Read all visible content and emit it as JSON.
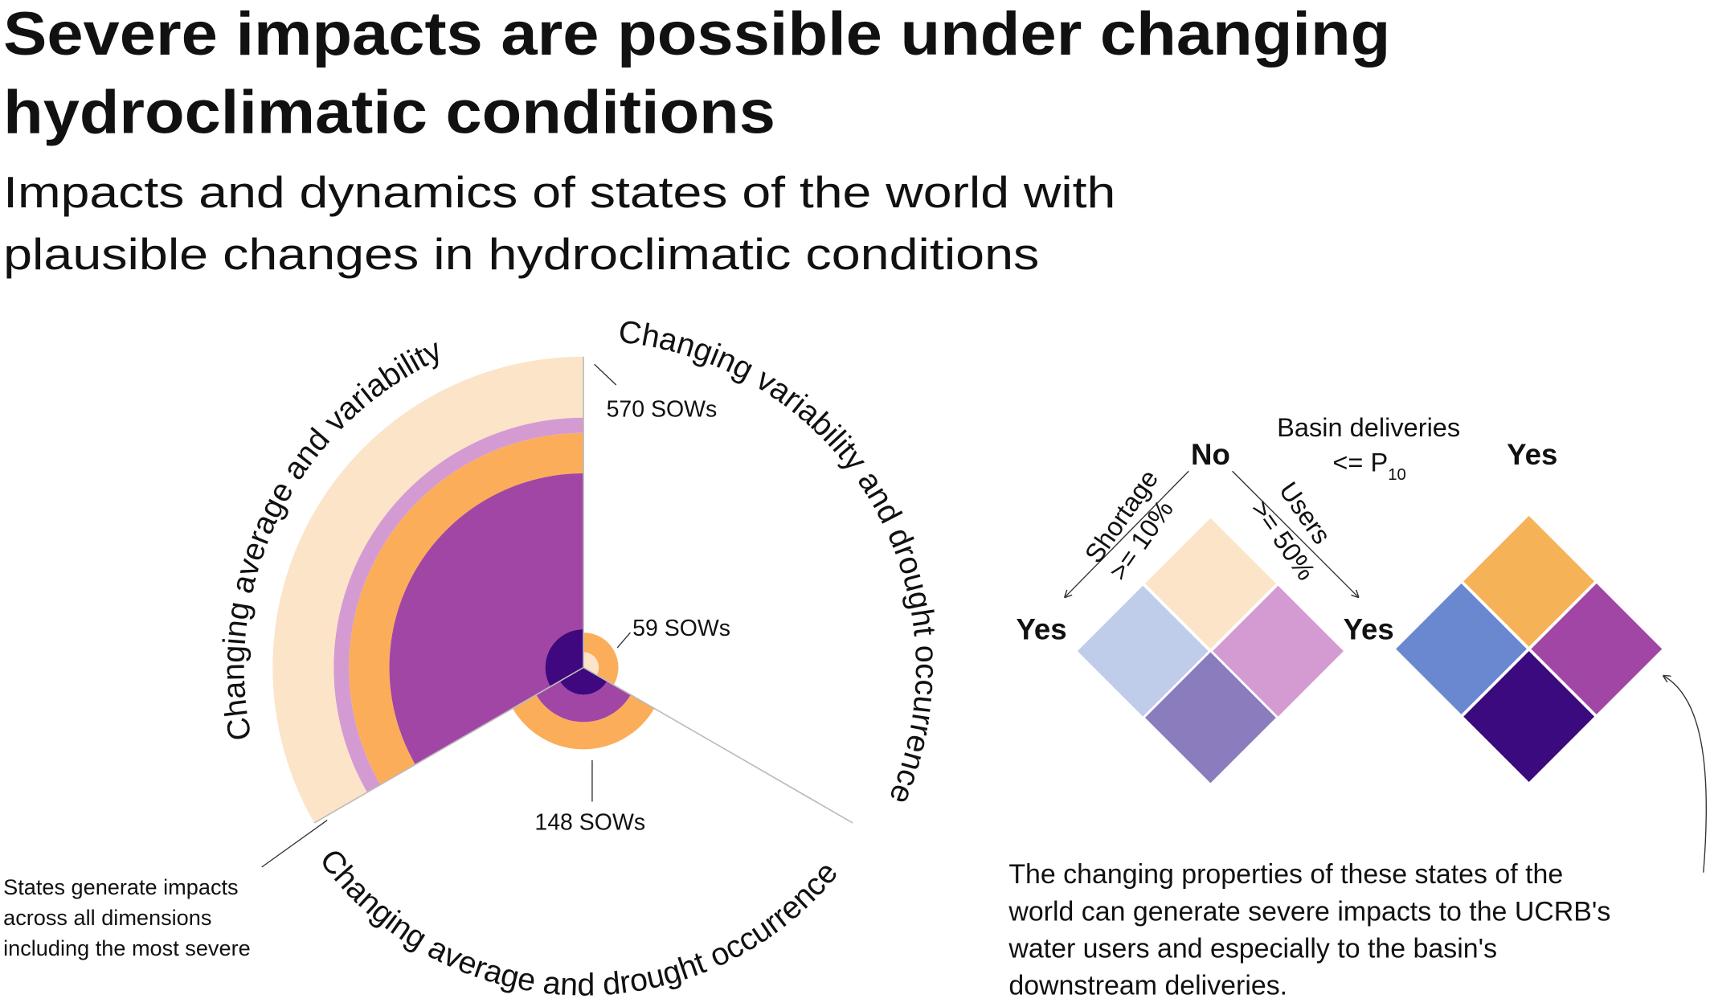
{
  "header": {
    "title_lines": [
      "Severe impacts are possible under changing",
      "hydroclimatic conditions"
    ],
    "subtitle_lines": [
      "Impacts and dynamics of states of the world with",
      "plausible changes in hydroclimatic conditions"
    ]
  },
  "radial": {
    "sectors": [
      {
        "label": "Changing average and variability",
        "count_label": "570 SOWs"
      },
      {
        "label": "Changing variability and drought occurrence",
        "count_label": "59 SOWs"
      },
      {
        "label": "Changing average and drought occurrence",
        "count_label": "148 SOWs"
      }
    ],
    "note_lines": [
      "States generate impacts",
      "across all dimensions",
      "including the most severe"
    ]
  },
  "legend": {
    "axis_title": "Basin deliveries",
    "threshold": "<= P",
    "threshold_sub": "10",
    "no": "No",
    "yes_top": "Yes",
    "yes_left": "Yes",
    "yes_right": "Yes",
    "shortage": "Shortage",
    "shortage_threshold": ">= 10%",
    "users": "Users",
    "users_threshold": ">= 50%"
  },
  "caption_lines": [
    "The changing properties of these states of the",
    "world can generate severe impacts to the UCRB's",
    "water users and especially to the basin's",
    "downstream deliveries."
  ]
}
